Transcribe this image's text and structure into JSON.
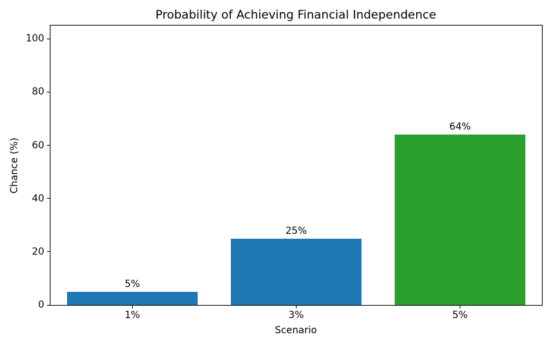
{
  "chart_data": {
    "type": "bar",
    "title": "Probability of Achieving Financial Independence",
    "xlabel": "Scenario",
    "ylabel": "Chance (%)",
    "categories": [
      "1%",
      "3%",
      "5%"
    ],
    "values": [
      5,
      25,
      64
    ],
    "bar_labels": [
      "5%",
      "25%",
      "64%"
    ],
    "bar_colors": [
      "#1f77b4",
      "#1f77b4",
      "#2ca02c"
    ],
    "ylim": [
      0,
      105
    ],
    "yticks": [
      0,
      20,
      40,
      60,
      80,
      100
    ],
    "grid": false,
    "legend": "none",
    "background_color": "#ffffff",
    "axis_color": "#000000",
    "bar_width_fraction": 0.8
  }
}
